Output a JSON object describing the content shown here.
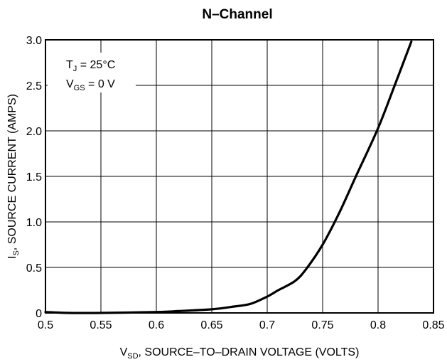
{
  "chart_data": {
    "type": "line",
    "title": "N–Channel",
    "xlabel": {
      "main": "V",
      "sub": "SD",
      "rest": ", SOURCE–TO–DRAIN VOLTAGE (VOLTS)"
    },
    "ylabel": {
      "main": "I",
      "sub": "S",
      "rest": ", SOURCE CURRENT (AMPS)"
    },
    "xlim": [
      0.5,
      0.85
    ],
    "ylim": [
      0,
      3.0
    ],
    "x_ticks": [
      0.5,
      0.55,
      0.6,
      0.65,
      0.7,
      0.75,
      0.8,
      0.85
    ],
    "x_tick_labels": [
      "0.5",
      "0.55",
      "0.6",
      "0.65",
      "0.7",
      "0.75",
      "0.8",
      "0.85"
    ],
    "y_ticks": [
      0,
      0.5,
      1.0,
      1.5,
      2.0,
      2.5,
      3.0
    ],
    "y_tick_labels": [
      "0",
      "0.5",
      "1.0",
      "1.5",
      "2.0",
      "2.5",
      "3.0"
    ],
    "grid": true,
    "annotations": [
      {
        "main": "T",
        "sub": "J",
        "rest": " = 25°C"
      },
      {
        "main": "V",
        "sub": "GS",
        "rest": " = 0 V"
      }
    ],
    "series": [
      {
        "x": [
          0.5,
          0.52,
          0.55,
          0.6,
          0.62,
          0.65,
          0.67,
          0.685,
          0.7,
          0.71,
          0.725,
          0.735,
          0.75,
          0.765,
          0.78,
          0.8,
          0.815,
          0.83
        ],
        "y": [
          0.01,
          0.0,
          0.0,
          0.01,
          0.02,
          0.04,
          0.07,
          0.1,
          0.18,
          0.25,
          0.35,
          0.48,
          0.75,
          1.1,
          1.5,
          2.03,
          2.5,
          2.98
        ]
      }
    ]
  }
}
